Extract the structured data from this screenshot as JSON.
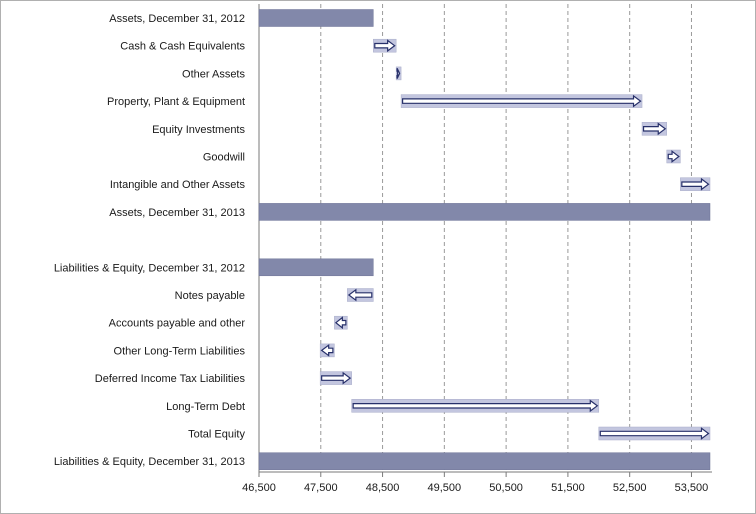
{
  "chart_data": {
    "type": "bar",
    "subtype": "waterfall",
    "title": "",
    "xlabel": "",
    "ylabel": "",
    "xlim": [
      46500,
      53800
    ],
    "xticks": [
      46500,
      47500,
      48500,
      49500,
      50500,
      51500,
      52500,
      53500
    ],
    "xtick_labels": [
      "46,500",
      "47,500",
      "48,500",
      "49,500",
      "50,500",
      "51,500",
      "52,500",
      "53,500"
    ],
    "grid": "vertical-dashed",
    "colors": {
      "total_bar": "#8288aa",
      "change_bar": "#c3c6df",
      "arrow": "#27306a",
      "grid": "#9a9a9a",
      "frame": "#b0b0b0"
    },
    "categories": [
      {
        "label": "Assets,  December 31, 2012",
        "kind": "total",
        "start": 46500,
        "end": 48350
      },
      {
        "label": "Cash & Cash Equivalents",
        "kind": "change",
        "start": 48350,
        "end": 48720
      },
      {
        "label": "Other Assets",
        "kind": "change",
        "start": 48720,
        "end": 48800
      },
      {
        "label": "Property, Plant & Equipment",
        "kind": "change",
        "start": 48800,
        "end": 52700
      },
      {
        "label": "Equity Investments",
        "kind": "change",
        "start": 52700,
        "end": 53100
      },
      {
        "label": "Goodwill",
        "kind": "change",
        "start": 53100,
        "end": 53320
      },
      {
        "label": "Intangible and Other Assets",
        "kind": "change",
        "start": 53320,
        "end": 53800
      },
      {
        "label": "Assets,  December 31, 2013",
        "kind": "total",
        "start": 46500,
        "end": 53800
      },
      {
        "label": "",
        "kind": "gap"
      },
      {
        "label": "Liabilities & Equity, December 31, 2012",
        "kind": "total",
        "start": 46500,
        "end": 48350
      },
      {
        "label": "Notes payable",
        "kind": "change",
        "start": 48350,
        "end": 47930
      },
      {
        "label": "Accounts payable and other",
        "kind": "change",
        "start": 47930,
        "end": 47720
      },
      {
        "label": "Other Long-Term Liabilities",
        "kind": "change",
        "start": 47720,
        "end": 47490
      },
      {
        "label": "Deferred Income Tax Liabilities",
        "kind": "change",
        "start": 47490,
        "end": 48000
      },
      {
        "label": "Long-Term Debt",
        "kind": "change",
        "start": 48000,
        "end": 52000
      },
      {
        "label": "Total Equity",
        "kind": "change",
        "start": 52000,
        "end": 53800
      },
      {
        "label": "Liabilities & Equity, December 31, 2013",
        "kind": "total",
        "start": 46500,
        "end": 53800
      }
    ]
  }
}
